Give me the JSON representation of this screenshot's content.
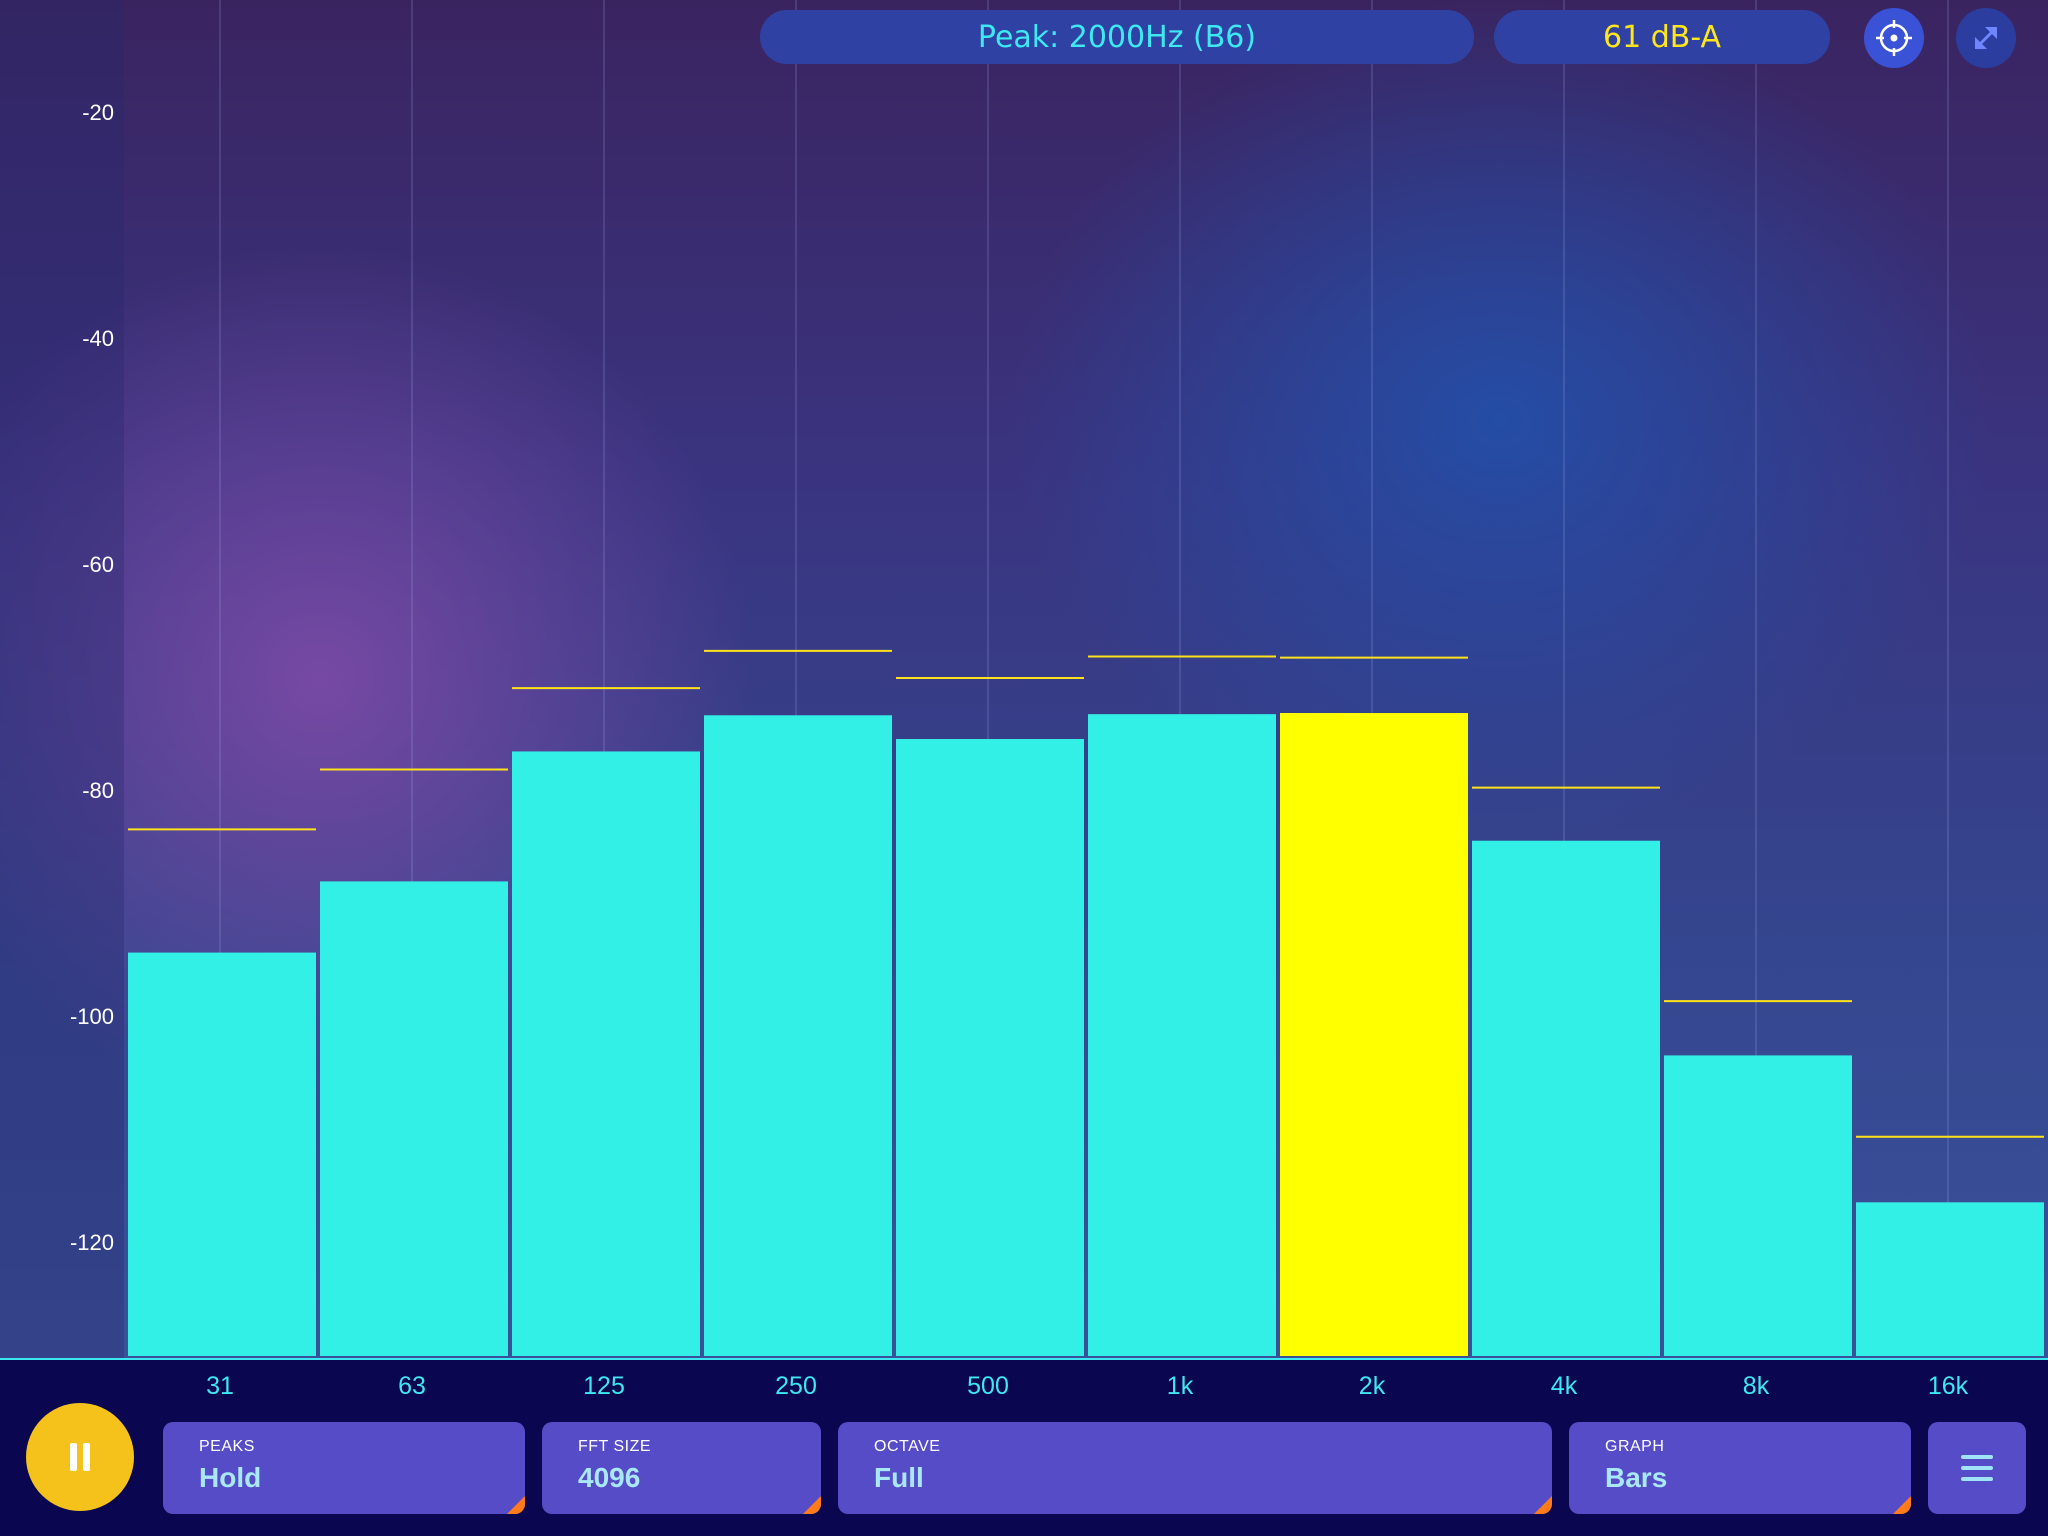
{
  "header": {
    "peak_text": "Peak: 2000Hz (B6)",
    "level_text": "61 dB-A",
    "target_icon": "crosshair-icon",
    "expand_icon": "collapse-arrows-icon"
  },
  "chart_data": {
    "type": "bar",
    "categories": [
      "31",
      "63",
      "125",
      "250",
      "500",
      "1k",
      "2k",
      "4k",
      "8k",
      "16k"
    ],
    "values": [
      -94.3,
      -88.0,
      -76.5,
      -73.3,
      -75.4,
      -73.2,
      -73.1,
      -84.4,
      -103.4,
      -116.4
    ],
    "peaks": [
      -83.4,
      -78.1,
      -70.9,
      -67.6,
      -70.0,
      -68.1,
      -68.2,
      -79.7,
      -98.6,
      -110.6
    ],
    "highlight_index": 6,
    "yticks": [
      -20,
      -40,
      -60,
      -80,
      -100,
      -120
    ],
    "ylim": [
      -130,
      -10
    ],
    "bar_color": "#33f0e6",
    "highlight_color": "#ffff00",
    "peak_color": "#ffe31a",
    "grid": true
  },
  "controls": {
    "pause_icon": "pause-icon",
    "peaks": {
      "caption": "PEAKS",
      "value": "Hold"
    },
    "fft": {
      "caption": "FFT SIZE",
      "value": "4096"
    },
    "octave": {
      "caption": "OCTAVE",
      "value": "Full"
    },
    "graph": {
      "caption": "GRAPH",
      "value": "Bars"
    },
    "menu_icon": "hamburger-menu-icon"
  },
  "colors": {
    "accent_cyan": "#3ee8f0",
    "accent_yellow": "#ffe61a",
    "control_bg": "#574cc8",
    "pause_button": "#f5c21c",
    "corner_mark": "#ff7a1a"
  }
}
